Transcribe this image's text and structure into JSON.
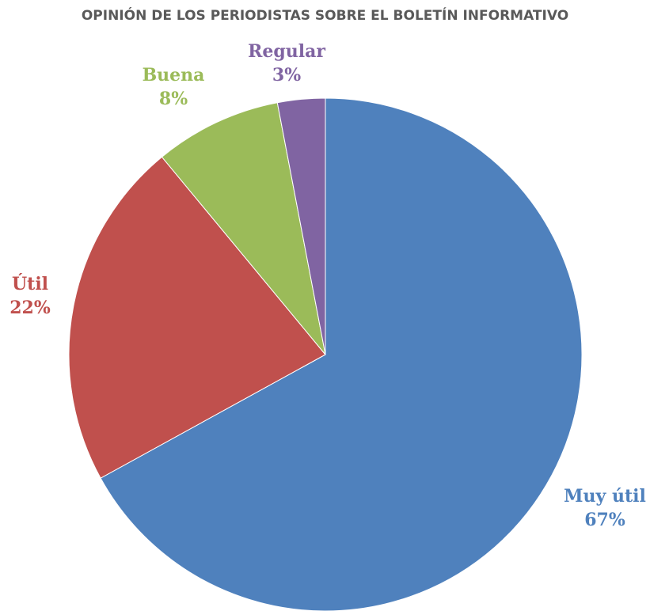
{
  "chart_data": {
    "type": "pie",
    "title": "OPINIÓN DE LOS PERIODISTAS SOBRE EL BOLETÍN INFORMATIVO",
    "slices": [
      {
        "label": "Muy útil",
        "value": 67,
        "value_label": "67%",
        "color": "#4F81BD"
      },
      {
        "label": "Útil",
        "value": 22,
        "value_label": "22%",
        "color": "#C0504D"
      },
      {
        "label": "Buena",
        "value": 8,
        "value_label": "8%",
        "color": "#9BBB59"
      },
      {
        "label": "Regular",
        "value": 3,
        "value_label": "3%",
        "color": "#8064A2"
      }
    ],
    "start": "12 o'clock",
    "direction": "clockwise"
  }
}
